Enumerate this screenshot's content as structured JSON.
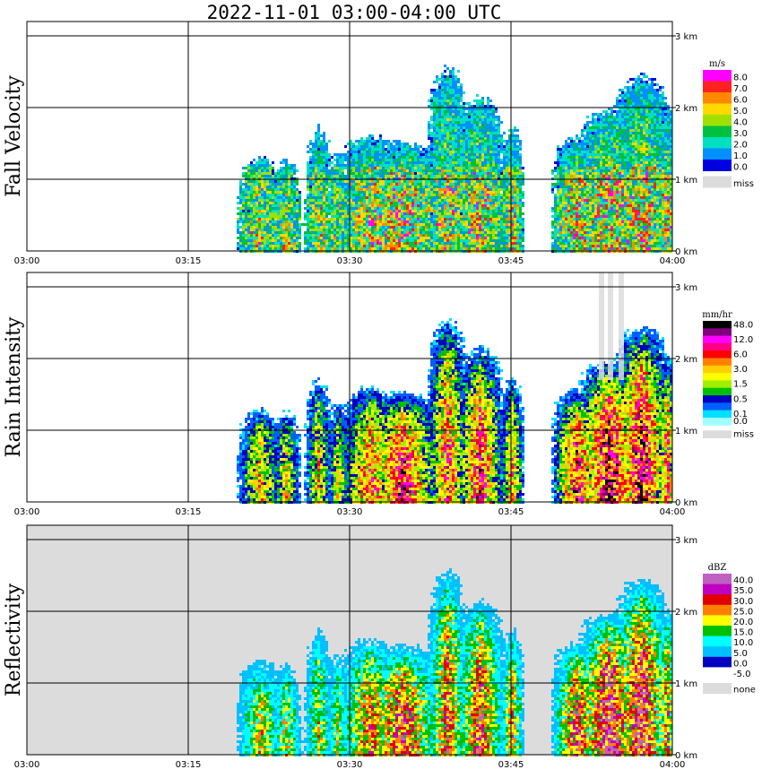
{
  "title": "2022-11-01   03:00-04:00 UTC",
  "chart_data": {
    "type": "heatmap",
    "x_ticks": [
      "03:00",
      "03:15",
      "03:30",
      "03:45",
      "04:00"
    ],
    "height_ticks": [
      "0 km",
      "1 km",
      "2 km",
      "3 km"
    ],
    "panels": [
      {
        "name": "Fall Velocity",
        "unit": "m/s",
        "background": "#ffffff",
        "legend": [
          {
            "label": "8.0",
            "color": "#ff00ff"
          },
          {
            "label": "7.0",
            "color": "#ff2020"
          },
          {
            "label": "6.0",
            "color": "#ff8800"
          },
          {
            "label": "5.0",
            "color": "#ffd800"
          },
          {
            "label": "4.0",
            "color": "#a0e000"
          },
          {
            "label": "3.0",
            "color": "#00c040"
          },
          {
            "label": "2.0",
            "color": "#00e0c0"
          },
          {
            "label": "1.0",
            "color": "#0090ff"
          },
          {
            "label": "0.0",
            "color": "#0000e0"
          },
          {
            "label": "miss",
            "color": "#dcdcdc"
          }
        ]
      },
      {
        "name": "Rain Intensity",
        "unit": "mm/hr",
        "background": "#ffffff",
        "legend": [
          {
            "label": "48.0",
            "color": "#000000"
          },
          {
            "label": "",
            "color": "#800080"
          },
          {
            "label": "12.0",
            "color": "#ff00ff"
          },
          {
            "label": "",
            "color": "#ff0080"
          },
          {
            "label": "6.0",
            "color": "#ff0000"
          },
          {
            "label": "",
            "color": "#ff8000"
          },
          {
            "label": "3.0",
            "color": "#ffd000"
          },
          {
            "label": "",
            "color": "#ffff00"
          },
          {
            "label": "1.5",
            "color": "#a0f000"
          },
          {
            "label": "",
            "color": "#00c000"
          },
          {
            "label": "0.5",
            "color": "#0000c0"
          },
          {
            "label": "",
            "color": "#0060ff"
          },
          {
            "label": "0.1",
            "color": "#00e0ff"
          },
          {
            "label": "0.0",
            "color": "#a0ffff"
          },
          {
            "label": "miss",
            "color": "#dcdcdc"
          }
        ]
      },
      {
        "name": "Reflectivity",
        "unit": "dBZ",
        "background": "#dcdcdc",
        "legend": [
          {
            "label": "40.0",
            "color": "#c060c0"
          },
          {
            "label": "35.0",
            "color": "#c000c0"
          },
          {
            "label": "30.0",
            "color": "#e00000"
          },
          {
            "label": "25.0",
            "color": "#ff8000"
          },
          {
            "label": "20.0",
            "color": "#ffff00"
          },
          {
            "label": "15.0",
            "color": "#00c000"
          },
          {
            "label": "10.0",
            "color": "#00ffff"
          },
          {
            "label": "5.0",
            "color": "#00c0ff"
          },
          {
            "label": "0.0",
            "color": "#0000c0"
          },
          {
            "label": "-5.0",
            "color": "#ffffff"
          },
          {
            "label": "none",
            "color": "#dcdcdc"
          }
        ]
      }
    ]
  }
}
